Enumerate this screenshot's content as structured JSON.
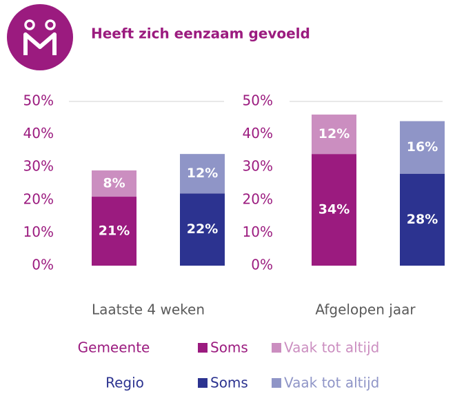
{
  "title": "Heeft zich eenzaam gevoeld",
  "chart_data": [
    {
      "type": "bar",
      "stacked": true,
      "xlabel": "Laatste 4 weken",
      "ylim": [
        0,
        50
      ],
      "yticks": [
        {
          "value": 0,
          "label": "0%"
        },
        {
          "value": 10,
          "label": "10%"
        },
        {
          "value": 20,
          "label": "20%"
        },
        {
          "value": 30,
          "label": "30%"
        },
        {
          "value": 40,
          "label": "40%"
        },
        {
          "value": 50,
          "label": "50%"
        }
      ],
      "series": [
        {
          "values": [
            21,
            22
          ],
          "value_labels": [
            "21%",
            "22%"
          ],
          "colors": [
            "#9b1b7f",
            "#2c3390"
          ]
        },
        {
          "values": [
            8,
            12
          ],
          "value_labels": [
            "8%",
            "12%"
          ],
          "colors": [
            "#cb8ec0",
            "#8f95c7"
          ]
        }
      ]
    },
    {
      "type": "bar",
      "stacked": true,
      "xlabel": "Afgelopen jaar",
      "ylim": [
        0,
        50
      ],
      "yticks": [
        {
          "value": 0,
          "label": "0%"
        },
        {
          "value": 10,
          "label": "10%"
        },
        {
          "value": 20,
          "label": "20%"
        },
        {
          "value": 30,
          "label": "30%"
        },
        {
          "value": 40,
          "label": "40%"
        },
        {
          "value": 50,
          "label": "50%"
        }
      ],
      "series": [
        {
          "values": [
            34,
            28
          ],
          "value_labels": [
            "34%",
            "28%"
          ],
          "colors": [
            "#9b1b7f",
            "#2c3390"
          ]
        },
        {
          "values": [
            12,
            16
          ],
          "value_labels": [
            "12%",
            "16%"
          ],
          "colors": [
            "#cb8ec0",
            "#8f95c7"
          ]
        }
      ]
    }
  ],
  "legend": [
    {
      "name": "Gemeente",
      "items": [
        {
          "name": "Soms",
          "color": "#9b1b7f"
        },
        {
          "name": "Vaak tot altijd",
          "color": "#cb8ec0"
        }
      ]
    },
    {
      "name": "Regio",
      "items": [
        {
          "name": "Soms",
          "color": "#2c3390"
        },
        {
          "name": "Vaak tot altijd",
          "color": "#8f95c7"
        }
      ]
    }
  ]
}
